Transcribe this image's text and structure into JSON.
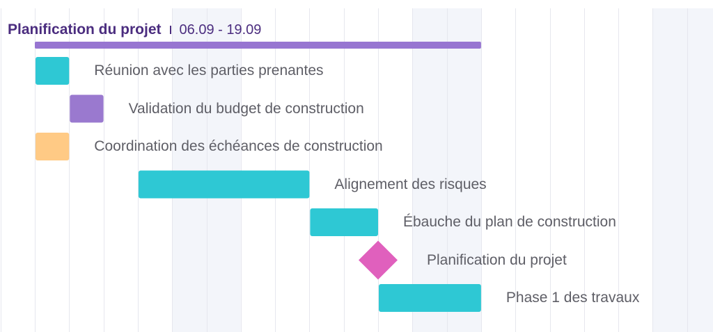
{
  "header": {
    "title": "Planification du projet",
    "range": "06.09 - 19.09"
  },
  "colors": {
    "grid": "#e6e7ee",
    "weekend_band": "#f3f5fa",
    "summary": "#9775d1",
    "teal": "#2ec8d4",
    "purple": "#9a79cf",
    "orange": "#ffca85",
    "milestone": "#e060bd"
  },
  "chart_data": {
    "type": "gantt",
    "time_unit": "day",
    "summary": {
      "label": "Planification du projet",
      "start": "06.09",
      "end": "19.09",
      "color": "#9775d1"
    },
    "tasks": [
      {
        "label": "Réunion avec les parties prenantes",
        "start": "06.09",
        "end": "07.09",
        "color": "#2ec8d4"
      },
      {
        "label": "Validation du budget de construction",
        "start": "07.09",
        "end": "08.09",
        "color": "#9a79cf"
      },
      {
        "label": "Coordination des échéances de construction",
        "start": "06.09",
        "end": "07.09",
        "color": "#ffca85"
      },
      {
        "label": "Alignement des risques",
        "start": "09.09",
        "end": "14.09",
        "color": "#2ec8d4"
      },
      {
        "label": "Ébauche du plan de construction",
        "start": "14.09",
        "end": "16.09",
        "color": "#2ec8d4"
      },
      {
        "label": "Planification du projet",
        "start": "16.09",
        "end": "16.09",
        "milestone": true,
        "color": "#e060bd"
      },
      {
        "label": "Phase 1 des travaux",
        "start": "16.09",
        "end": "19.09",
        "color": "#2ec8d4"
      }
    ]
  }
}
